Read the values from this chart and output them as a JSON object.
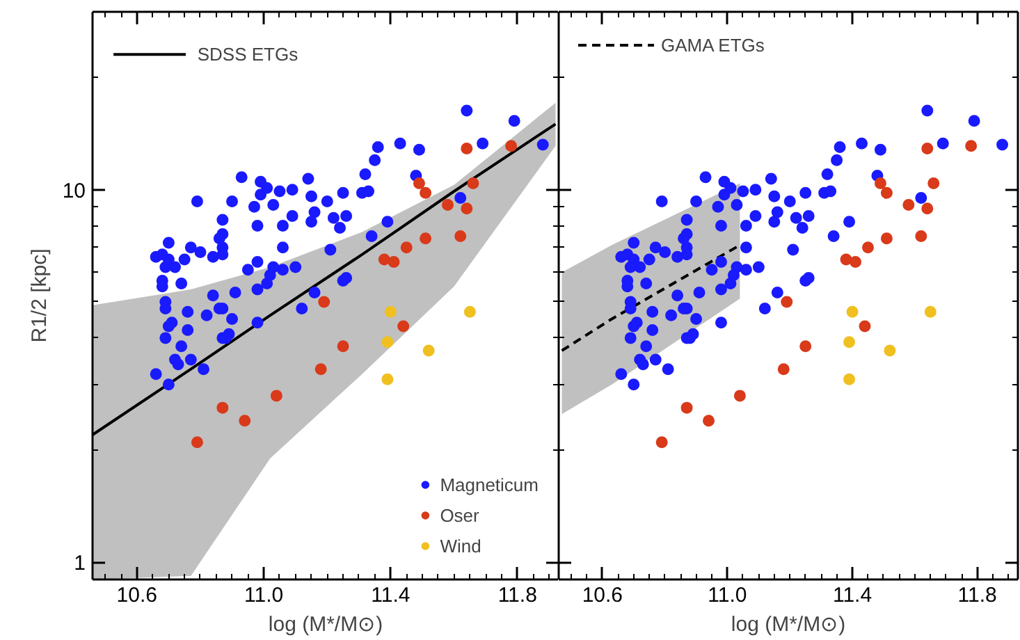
{
  "chart_data": [
    {
      "type": "scatter",
      "xlabel": "log (M*/M⊙)",
      "ylabel": "R1/2 [kpc]",
      "log": "y",
      "legend": "bottom right",
      "marker": "circle",
      "xlim": [
        10.46,
        11.93
      ],
      "ylim": [
        0.9,
        30
      ],
      "xticks": [
        10.6,
        {
          "value": 11.0,
          "label": "11.0"
        },
        11.4,
        11.8
      ],
      "yticks": [
        1,
        10
      ],
      "series": [
        {
          "name": "SDSS ETGs",
          "type": "line",
          "marker": "none",
          "line_style": "solid",
          "color": "#000000",
          "x": [
            10.46,
            10.77,
            11.02,
            11.31,
            11.6,
            11.92
          ],
          "values": [
            2.2,
            3.3,
            4.6,
            6.7,
            9.9,
            15.0
          ],
          "lower": [
            0.9,
            0.92,
            1.9,
            3.2,
            5.5,
            13.1
          ],
          "upper": [
            4.9,
            5.4,
            6.2,
            7.7,
            10.3,
            17.1
          ]
        },
        {
          "name": "Magneticum",
          "color": "#1a1aff",
          "x": [
            11.64,
            11.79,
            11.69,
            11.88,
            11.43,
            11.36,
            11.49,
            11.35,
            11.32,
            11.48,
            10.93,
            11.14,
            10.99,
            11.01,
            10.99,
            11.05,
            11.09,
            11.15,
            11.25,
            11.31,
            11.33,
            10.79,
            10.9,
            10.97,
            11.03,
            11.2,
            11.62,
            11.16,
            11.09,
            11.22,
            11.26,
            10.87,
            11.15,
            11.39,
            10.98,
            11.06,
            11.24,
            10.87,
            10.86,
            11.34,
            10.7,
            10.77,
            10.87,
            10.8,
            11.06,
            11.21,
            10.66,
            10.68,
            10.7,
            10.75,
            10.84,
            10.87,
            10.98,
            10.69,
            10.72,
            10.95,
            11.03,
            11.06,
            11.1,
            10.68,
            10.68,
            10.74,
            11.01,
            11.02,
            11.25,
            11.26,
            10.84,
            10.91,
            10.98,
            10.69,
            10.69,
            10.87,
            10.86,
            11.12,
            11.16,
            10.76,
            10.82,
            10.9,
            10.71,
            10.7,
            10.98,
            10.76,
            10.69,
            10.87,
            10.88,
            10.89,
            10.74,
            10.72,
            10.73,
            10.77,
            10.81,
            10.66,
            10.7
          ],
          "values": [
            16.3,
            15.3,
            13.3,
            13.2,
            13.3,
            13.0,
            12.8,
            12.0,
            11.0,
            10.9,
            10.8,
            10.7,
            10.5,
            10.1,
            9.7,
            9.9,
            10.0,
            9.6,
            9.8,
            9.8,
            9.9,
            9.3,
            9.3,
            9.0,
            9.1,
            9.3,
            9.5,
            8.7,
            8.5,
            8.4,
            8.5,
            8.3,
            8.2,
            8.2,
            8.0,
            8.0,
            7.9,
            7.6,
            7.4,
            7.5,
            7.2,
            7.0,
            7.0,
            6.8,
            7.0,
            6.9,
            6.6,
            6.7,
            6.5,
            6.5,
            6.6,
            6.7,
            6.4,
            6.2,
            6.2,
            6.1,
            6.2,
            6.1,
            6.2,
            5.7,
            5.5,
            5.6,
            5.6,
            5.9,
            5.7,
            5.8,
            5.2,
            5.3,
            5.4,
            5.0,
            4.8,
            4.8,
            4.8,
            4.8,
            5.3,
            4.7,
            4.6,
            4.5,
            4.4,
            4.3,
            4.4,
            4.2,
            4.0,
            4.0,
            4.0,
            4.1,
            3.8,
            3.5,
            3.4,
            3.5,
            3.3,
            3.2,
            3.0
          ]
        },
        {
          "name": "Oser",
          "color": "#d93a1a",
          "x": [
            11.64,
            11.78,
            11.49,
            11.51,
            11.66,
            11.58,
            11.64,
            11.51,
            11.62,
            11.45,
            11.38,
            11.41,
            11.19,
            11.44,
            11.25,
            11.18,
            11.04,
            10.87,
            10.94,
            10.79
          ],
          "values": [
            12.9,
            13.1,
            10.4,
            9.8,
            10.4,
            9.1,
            8.9,
            7.4,
            7.5,
            7.0,
            6.5,
            6.4,
            5.0,
            4.3,
            3.8,
            3.3,
            2.8,
            2.6,
            2.4,
            2.1
          ]
        },
        {
          "name": "Wind",
          "color": "#f0c020",
          "x": [
            11.4,
            11.65,
            11.39,
            11.52,
            11.39
          ],
          "values": [
            4.7,
            4.7,
            3.9,
            3.7,
            3.1
          ]
        }
      ]
    },
    {
      "type": "scatter",
      "xlabel": "log (M*/M⊙)",
      "log": "y",
      "legend": "top left",
      "marker": "circle",
      "tick_labels": "x",
      "xlim": [
        10.46,
        11.93
      ],
      "ylim": [
        0.9,
        30
      ],
      "xticks": [
        10.6,
        {
          "value": 11.0,
          "label": "11.0"
        },
        11.4,
        11.8
      ],
      "yticks": [
        1,
        10
      ],
      "series": [
        {
          "name": "GAMA ETGs",
          "type": "line",
          "marker": "none",
          "line_style": "dashed",
          "color": "#000000",
          "x": [
            10.47,
            10.63,
            11.04
          ],
          "values": [
            3.7,
            4.5,
            7.1
          ],
          "lower": [
            2.5,
            3.0,
            5.1
          ],
          "upper": [
            6.0,
            7.1,
            10.4
          ]
        },
        {
          "color": "#1a1aff",
          "x": [
            11.64,
            11.79,
            11.69,
            11.88,
            11.43,
            11.36,
            11.49,
            11.35,
            11.32,
            11.48,
            10.93,
            11.14,
            10.99,
            11.01,
            10.99,
            11.05,
            11.09,
            11.15,
            11.25,
            11.31,
            11.33,
            10.79,
            10.9,
            10.97,
            11.03,
            11.2,
            11.62,
            11.16,
            11.09,
            11.22,
            11.26,
            10.87,
            11.15,
            11.39,
            10.98,
            11.06,
            11.24,
            10.87,
            10.86,
            11.34,
            10.7,
            10.77,
            10.87,
            10.8,
            11.06,
            11.21,
            10.66,
            10.68,
            10.7,
            10.75,
            10.84,
            10.87,
            10.98,
            10.69,
            10.72,
            10.95,
            11.03,
            11.06,
            11.1,
            10.68,
            10.68,
            10.74,
            11.01,
            11.02,
            11.25,
            11.26,
            10.84,
            10.91,
            10.98,
            10.69,
            10.69,
            10.87,
            10.86,
            11.12,
            11.16,
            10.76,
            10.82,
            10.9,
            10.71,
            10.7,
            10.98,
            10.76,
            10.69,
            10.87,
            10.88,
            10.89,
            10.74,
            10.72,
            10.73,
            10.77,
            10.81,
            10.66,
            10.7
          ],
          "values": [
            16.3,
            15.3,
            13.3,
            13.2,
            13.3,
            13.0,
            12.8,
            12.0,
            11.0,
            10.9,
            10.8,
            10.7,
            10.5,
            10.1,
            9.7,
            9.9,
            10.0,
            9.6,
            9.8,
            9.8,
            9.9,
            9.3,
            9.3,
            9.0,
            9.1,
            9.3,
            9.5,
            8.7,
            8.5,
            8.4,
            8.5,
            8.3,
            8.2,
            8.2,
            8.0,
            8.0,
            7.9,
            7.6,
            7.4,
            7.5,
            7.2,
            7.0,
            7.0,
            6.8,
            7.0,
            6.9,
            6.6,
            6.7,
            6.5,
            6.5,
            6.6,
            6.7,
            6.4,
            6.2,
            6.2,
            6.1,
            6.2,
            6.1,
            6.2,
            5.7,
            5.5,
            5.6,
            5.6,
            5.9,
            5.7,
            5.8,
            5.2,
            5.3,
            5.4,
            5.0,
            4.8,
            4.8,
            4.8,
            4.8,
            5.3,
            4.7,
            4.6,
            4.5,
            4.4,
            4.3,
            4.4,
            4.2,
            4.0,
            4.0,
            4.0,
            4.1,
            3.8,
            3.5,
            3.4,
            3.5,
            3.3,
            3.2,
            3.0
          ]
        },
        {
          "color": "#d93a1a",
          "x": [
            11.64,
            11.78,
            11.49,
            11.51,
            11.66,
            11.58,
            11.64,
            11.51,
            11.62,
            11.45,
            11.38,
            11.41,
            11.19,
            11.44,
            11.25,
            11.18,
            11.04,
            10.87,
            10.94,
            10.79
          ],
          "values": [
            12.9,
            13.1,
            10.4,
            9.8,
            10.4,
            9.1,
            8.9,
            7.4,
            7.5,
            7.0,
            6.5,
            6.4,
            5.0,
            4.3,
            3.8,
            3.3,
            2.8,
            2.6,
            2.4,
            2.1
          ]
        },
        {
          "color": "#f0c020",
          "x": [
            11.4,
            11.65,
            11.39,
            11.52,
            11.39
          ],
          "values": [
            4.7,
            4.7,
            3.9,
            3.7,
            3.1
          ]
        }
      ]
    }
  ]
}
